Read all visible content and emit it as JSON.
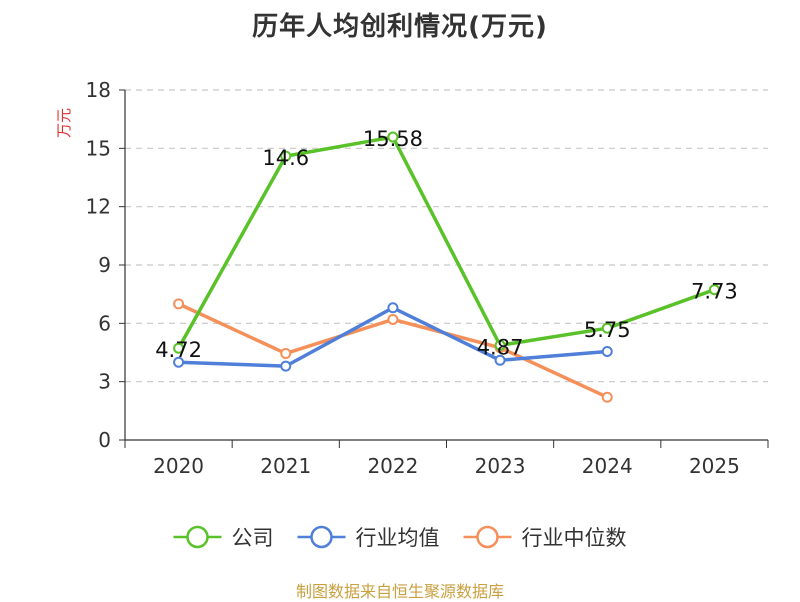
{
  "chart_data": {
    "type": "line",
    "title": "历年人均创利情况(万元)",
    "ylabel": "万元",
    "categories": [
      "2020",
      "2021",
      "2022",
      "2023",
      "2024",
      "2025"
    ],
    "ylim": [
      0,
      18
    ],
    "yticks": [
      0,
      3,
      6,
      9,
      12,
      15,
      18
    ],
    "grid": true,
    "legend_position": "bottom",
    "series": [
      {
        "name": "公司",
        "color": "#5ac229",
        "values": [
          4.72,
          14.6,
          15.58,
          4.87,
          5.75,
          7.73
        ],
        "labels": [
          "4.72",
          "14.6",
          "15.58",
          "4.87",
          "5.75",
          "7.73"
        ]
      },
      {
        "name": "行业均值",
        "color": "#4f7fd8",
        "values": [
          4.0,
          3.8,
          6.8,
          4.1,
          4.55,
          null
        ],
        "labels": []
      },
      {
        "name": "行业中位数",
        "color": "#f5905a",
        "values": [
          7.0,
          4.45,
          6.2,
          4.75,
          2.2,
          null
        ],
        "labels": []
      }
    ]
  },
  "footer": {
    "source": "制图数据来自恒生聚源数据库"
  }
}
